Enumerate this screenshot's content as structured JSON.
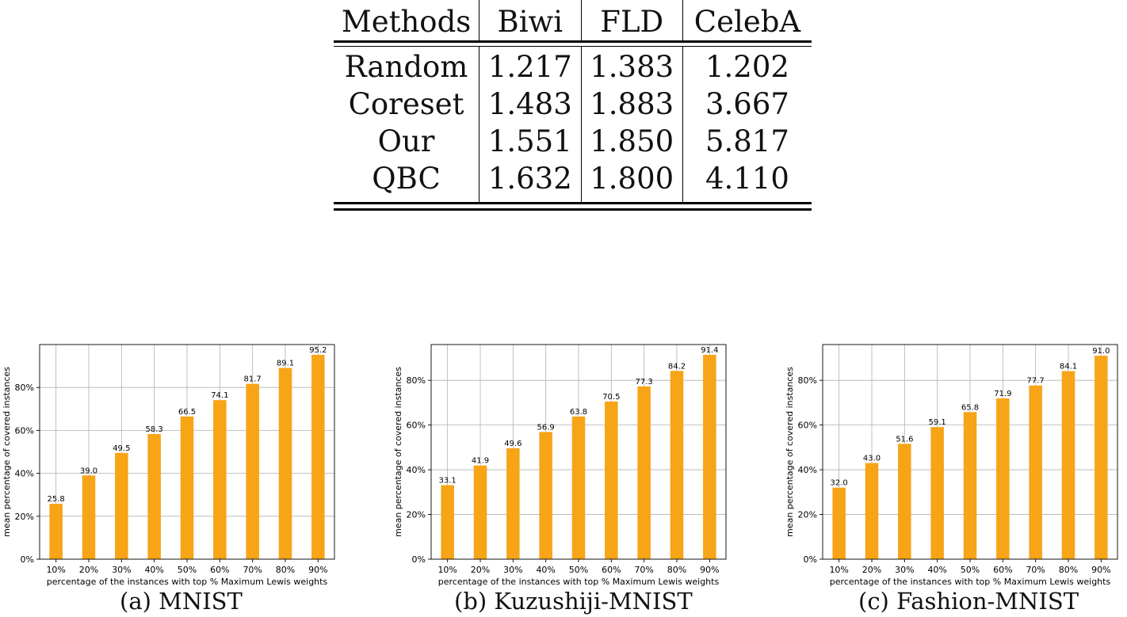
{
  "table": {
    "headers": [
      "Methods",
      "Biwi",
      "FLD",
      "CelebA"
    ],
    "rows": [
      [
        "Random",
        "1.217",
        "1.383",
        "1.202"
      ],
      [
        "Coreset",
        "1.483",
        "1.883",
        "3.667"
      ],
      [
        "Our",
        "1.551",
        "1.850",
        "5.817"
      ],
      [
        "QBC",
        "1.632",
        "1.800",
        "4.110"
      ]
    ]
  },
  "captions": {
    "a": "(a) MNIST",
    "b": "(b) Kuzushiji-MNIST",
    "c": "(c) Fashion-MNIST"
  },
  "colors": {
    "bar": "#F7A417",
    "grid": "#b0b0b0",
    "axis": "#000000"
  },
  "chart_data": [
    {
      "type": "bar",
      "title": "",
      "caption": "(a) MNIST",
      "categories": [
        "10%",
        "20%",
        "30%",
        "40%",
        "50%",
        "60%",
        "70%",
        "80%",
        "90%"
      ],
      "values": [
        25.8,
        39.0,
        49.5,
        58.3,
        66.5,
        74.1,
        81.7,
        89.1,
        95.2
      ],
      "value_labels": [
        "25.8",
        "39.0",
        "49.5",
        "58.3",
        "66.5",
        "74.1",
        "81.7",
        "89.1",
        "95.2"
      ],
      "xlabel": "percentage of the instances with top % Maximum Lewis weights",
      "ylabel": "mean percentage of covered instances",
      "ylim": [
        0,
        100
      ],
      "yticks": [
        0,
        20,
        40,
        60,
        80
      ],
      "ytick_labels": [
        "0%",
        "20%",
        "40%",
        "60%",
        "80%"
      ],
      "grid": true
    },
    {
      "type": "bar",
      "title": "",
      "caption": "(b) Kuzushiji-MNIST",
      "categories": [
        "10%",
        "20%",
        "30%",
        "40%",
        "50%",
        "60%",
        "70%",
        "80%",
        "90%"
      ],
      "values": [
        33.1,
        41.9,
        49.6,
        56.9,
        63.8,
        70.5,
        77.3,
        84.2,
        91.4
      ],
      "value_labels": [
        "33.1",
        "41.9",
        "49.6",
        "56.9",
        "63.8",
        "70.5",
        "77.3",
        "84.2",
        "91.4"
      ],
      "xlabel": "percentage of the instances with top % Maximum Lewis weights",
      "ylabel": "mean percentage of covered instances",
      "ylim": [
        0,
        96
      ],
      "yticks": [
        0,
        20,
        40,
        60,
        80
      ],
      "ytick_labels": [
        "0%",
        "20%",
        "40%",
        "60%",
        "80%"
      ],
      "grid": true
    },
    {
      "type": "bar",
      "title": "",
      "caption": "(c) Fashion-MNIST",
      "categories": [
        "10%",
        "20%",
        "30%",
        "40%",
        "50%",
        "60%",
        "70%",
        "80%",
        "90%"
      ],
      "values": [
        32.0,
        43.0,
        51.6,
        59.1,
        65.8,
        71.9,
        77.7,
        84.1,
        91.0
      ],
      "value_labels": [
        "32.0",
        "43.0",
        "51.6",
        "59.1",
        "65.8",
        "71.9",
        "77.7",
        "84.1",
        "91.0"
      ],
      "xlabel": "percentage of the instances with top % Maximum Lewis weights",
      "ylabel": "mean percentage of covered instances",
      "ylim": [
        0,
        96
      ],
      "yticks": [
        0,
        20,
        40,
        60,
        80
      ],
      "ytick_labels": [
        "0%",
        "20%",
        "40%",
        "60%",
        "80%"
      ],
      "grid": true
    }
  ]
}
